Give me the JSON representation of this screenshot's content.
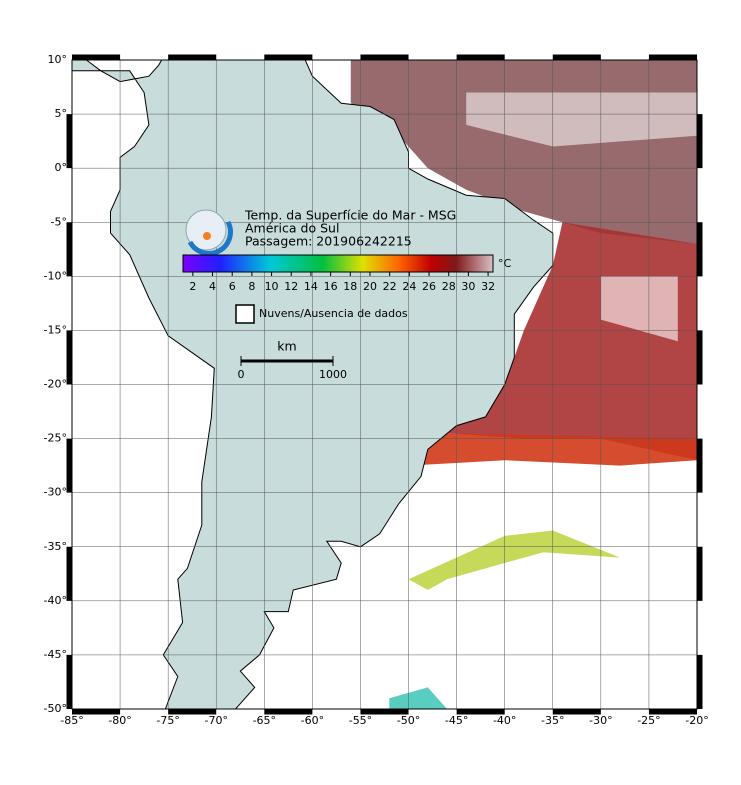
{
  "map": {
    "title": "Temp. da Superfície do Mar - MSG",
    "subtitle": "América do Sul",
    "pass": "Passagem: 201906242215",
    "lon_range": [
      -85,
      -20
    ],
    "lat_range": [
      -50,
      10
    ],
    "lon_ticks": [
      {
        "value": -85,
        "label": "-85°"
      },
      {
        "value": -80,
        "label": "-80°"
      },
      {
        "value": -75,
        "label": "-75°"
      },
      {
        "value": -70,
        "label": "-70°"
      },
      {
        "value": -65,
        "label": "-65°"
      },
      {
        "value": -60,
        "label": "-60°"
      },
      {
        "value": -55,
        "label": "-55°"
      },
      {
        "value": -50,
        "label": "-50°"
      },
      {
        "value": -45,
        "label": "-45°"
      },
      {
        "value": -40,
        "label": "-40°"
      },
      {
        "value": -35,
        "label": "-35°"
      },
      {
        "value": -30,
        "label": "-30°"
      },
      {
        "value": -25,
        "label": "-25°"
      },
      {
        "value": -20,
        "label": "-20°"
      }
    ],
    "lat_ticks": [
      {
        "value": 10,
        "label": "10°"
      },
      {
        "value": 5,
        "label": "5°"
      },
      {
        "value": 0,
        "label": "0°"
      },
      {
        "value": -5,
        "label": "-5°"
      },
      {
        "value": -10,
        "label": "-10°"
      },
      {
        "value": -15,
        "label": "-15°"
      },
      {
        "value": -20,
        "label": "-20°"
      },
      {
        "value": -25,
        "label": "-25°"
      },
      {
        "value": -30,
        "label": "-30°"
      },
      {
        "value": -35,
        "label": "-35°"
      },
      {
        "value": -40,
        "label": "-40°"
      },
      {
        "value": -45,
        "label": "-45°"
      },
      {
        "value": -50,
        "label": "-50°"
      }
    ],
    "colorbar": {
      "unit": "°C",
      "range": [
        1,
        32.5
      ],
      "ticks": [
        2,
        4,
        6,
        8,
        10,
        12,
        14,
        16,
        18,
        20,
        22,
        24,
        26,
        28,
        30,
        32
      ]
    },
    "legend": "Nuvens/Ausencia de dados",
    "scale": {
      "unit": "km",
      "labels": [
        "0",
        "1000"
      ]
    }
  }
}
